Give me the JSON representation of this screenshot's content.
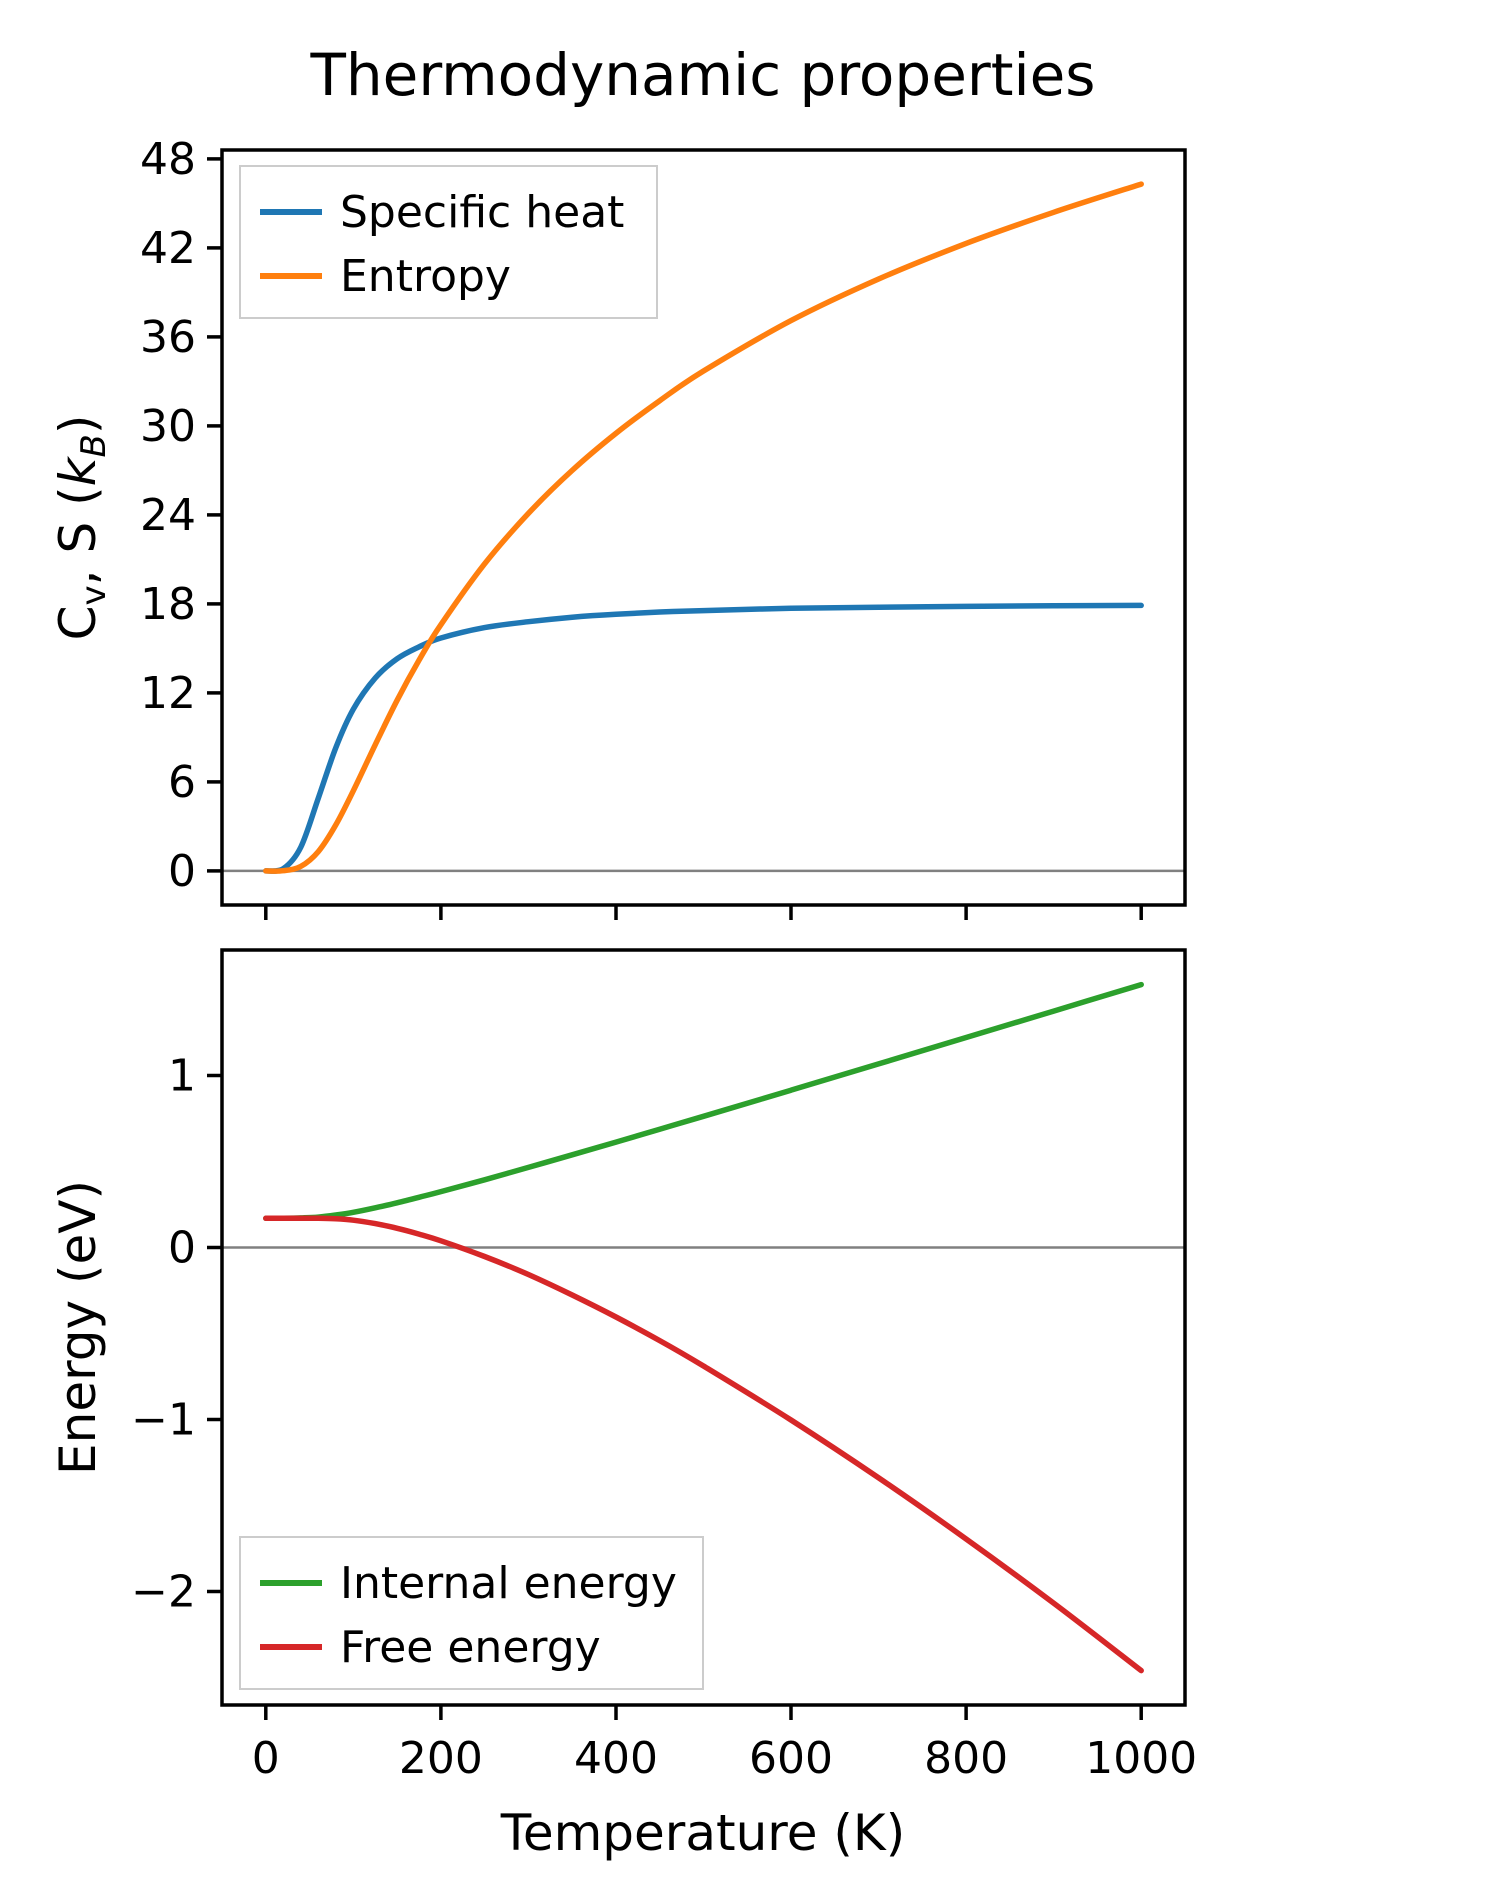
{
  "figure": {
    "title": "Thermodynamic properties",
    "xlabel": "Temperature (K)"
  },
  "chart_data": [
    {
      "type": "line",
      "title": "Thermodynamic properties",
      "xlabel": "",
      "ylabel": "Cv, S (kB)",
      "ylabel_rich": [
        {
          "text": "C"
        },
        {
          "text": "v",
          "sub": true
        },
        {
          "text": ", S ("
        },
        {
          "text": "k",
          "italic": true
        },
        {
          "text": "B",
          "sub": true,
          "italic": true
        },
        {
          "text": ")"
        }
      ],
      "xlim": [
        -50,
        1050
      ],
      "ylim": [
        -2.3,
        48.6
      ],
      "xticks": [
        0,
        200,
        400,
        600,
        800,
        1000
      ],
      "yticks": [
        0,
        6,
        12,
        18,
        24,
        30,
        36,
        42,
        48
      ],
      "show_xtick_labels": false,
      "zero_line": true,
      "grid": false,
      "legend": "upper left",
      "x": [
        0,
        20,
        40,
        60,
        80,
        100,
        125,
        150,
        175,
        200,
        250,
        300,
        350,
        400,
        450,
        500,
        600,
        700,
        800,
        900,
        1000
      ],
      "series": [
        {
          "name": "Specific heat",
          "color": "#1f77b4",
          "values": [
            0,
            0.15,
            1.6,
            4.9,
            8.3,
            10.9,
            13.0,
            14.3,
            15.1,
            15.7,
            16.4,
            16.8,
            17.1,
            17.3,
            17.45,
            17.55,
            17.7,
            17.78,
            17.83,
            17.87,
            17.9
          ]
        },
        {
          "name": "Entropy",
          "color": "#ff7f0e",
          "values": [
            0,
            0.01,
            0.3,
            1.3,
            3.1,
            5.4,
            8.5,
            11.5,
            14.2,
            16.6,
            20.7,
            24.1,
            27.0,
            29.5,
            31.7,
            33.7,
            37.1,
            39.9,
            42.3,
            44.4,
            46.3
          ]
        }
      ]
    },
    {
      "type": "line",
      "title": "",
      "xlabel": "Temperature (K)",
      "ylabel": "Energy (eV)",
      "ylabel_rich": [
        {
          "text": "Energy (eV)"
        }
      ],
      "xlim": [
        -50,
        1050
      ],
      "ylim": [
        -2.66,
        1.73
      ],
      "xticks": [
        0,
        200,
        400,
        600,
        800,
        1000
      ],
      "yticks": [
        -2,
        -1,
        0,
        1
      ],
      "show_xtick_labels": true,
      "zero_line": true,
      "grid": false,
      "legend": "lower left",
      "x": [
        0,
        20,
        40,
        60,
        80,
        100,
        125,
        150,
        175,
        200,
        250,
        300,
        350,
        400,
        450,
        500,
        600,
        700,
        800,
        900,
        1000
      ],
      "series": [
        {
          "name": "Internal energy",
          "color": "#2ca02c",
          "values": [
            0.17,
            0.17,
            0.172,
            0.177,
            0.189,
            0.205,
            0.231,
            0.26,
            0.292,
            0.325,
            0.394,
            0.466,
            0.539,
            0.613,
            0.688,
            0.763,
            0.915,
            1.068,
            1.221,
            1.375,
            1.529
          ]
        },
        {
          "name": "Free energy",
          "color": "#d62728",
          "values": [
            0.17,
            0.17,
            0.17,
            0.17,
            0.167,
            0.159,
            0.139,
            0.112,
            0.078,
            0.039,
            -0.052,
            -0.157,
            -0.276,
            -0.404,
            -0.541,
            -0.689,
            -1.003,
            -1.339,
            -1.695,
            -2.068,
            -2.46
          ]
        }
      ]
    }
  ]
}
